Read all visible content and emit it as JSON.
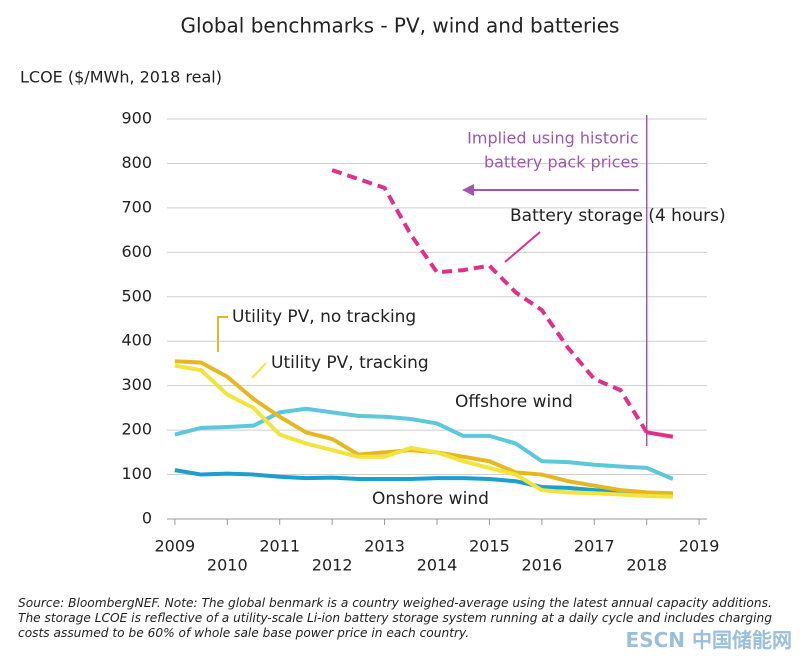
{
  "chart_data": {
    "type": "line",
    "title": "Global benchmarks - PV, wind and batteries",
    "y_label": "LCOE ($/MWh, 2018 real)",
    "x": [
      2009,
      2009.5,
      2010,
      2010.5,
      2011,
      2011.5,
      2012,
      2012.5,
      2013,
      2013.5,
      2014,
      2014.5,
      2015,
      2015.5,
      2016,
      2016.5,
      2017,
      2017.5,
      2018,
      2018.5
    ],
    "xlim": [
      2008.85,
      2019.15
    ],
    "xticks": [
      2009,
      2010,
      2011,
      2012,
      2013,
      2014,
      2015,
      2016,
      2017,
      2018,
      2019
    ],
    "ylim": [
      0,
      900
    ],
    "yticks": [
      0,
      100,
      200,
      300,
      400,
      500,
      600,
      700,
      800,
      900
    ],
    "grid": true,
    "series": [
      {
        "name": "Offshore wind",
        "color": "#5cc8dc",
        "values": [
          190,
          205,
          207,
          210,
          240,
          248,
          240,
          232,
          230,
          225,
          215,
          187,
          187,
          170,
          130,
          128,
          122,
          118,
          115,
          90
        ]
      },
      {
        "name": "Onshore wind",
        "color": "#1a9fd0",
        "values": [
          110,
          100,
          102,
          100,
          95,
          92,
          93,
          90,
          90,
          90,
          92,
          92,
          90,
          85,
          72,
          70,
          65,
          60,
          58,
          55
        ]
      },
      {
        "name": "Utility PV, no tracking",
        "color": "#e6b820",
        "values": [
          355,
          352,
          320,
          270,
          230,
          195,
          180,
          145,
          150,
          155,
          150,
          140,
          130,
          105,
          100,
          85,
          75,
          65,
          60,
          58
        ]
      },
      {
        "name": "Utility PV, tracking",
        "color": "#f2e43c",
        "values": [
          345,
          335,
          280,
          250,
          190,
          170,
          155,
          140,
          140,
          160,
          150,
          130,
          115,
          100,
          65,
          60,
          58,
          55,
          52,
          50
        ]
      },
      {
        "name": "Battery storage (4 hours)",
        "color": "#e0308a",
        "dashed_through_x": 2018,
        "values": [
          null,
          null,
          null,
          null,
          null,
          null,
          785,
          765,
          745,
          640,
          555,
          560,
          570,
          510,
          470,
          385,
          315,
          290,
          195,
          185
        ]
      }
    ],
    "annotation": [
      "Implied using historic",
      "battery pack prices"
    ],
    "annotation_color": "#a056b0",
    "source": "Source: BloombergNEF. Note: The global benmark is a country weighed-average using the latest annual capacity additions. The storage LCOE is reflective of a utility-scale Li-ion battery storage system running at a daily cycle and includes charging costs assumed to be 60% of whole sale base power price in each country.",
    "watermark": "ESCN 中国储能网"
  }
}
